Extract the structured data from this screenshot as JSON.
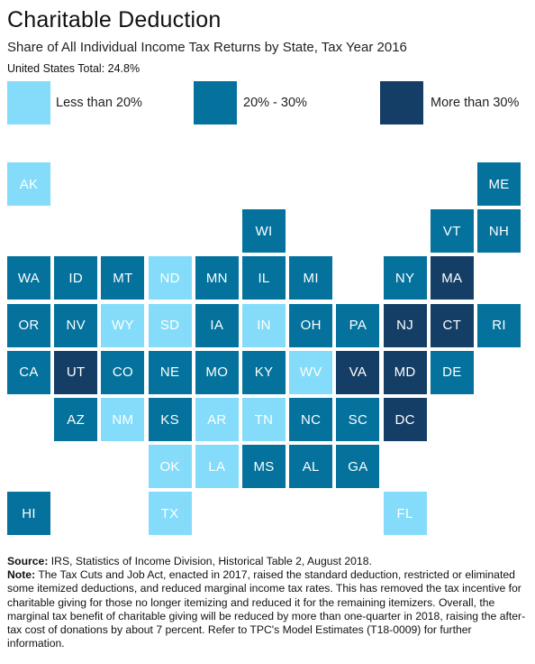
{
  "header": {
    "title": "Charitable Deduction",
    "subtitle": "Share of All Individual Income Tax Returns by State, Tax Year 2016",
    "total": "United States Total: 24.8%"
  },
  "colors": {
    "low": "#84dcfa",
    "mid": "#04729c",
    "high": "#153e66"
  },
  "legend": [
    {
      "label": "Less than 20%",
      "bucket": "low"
    },
    {
      "label": "20% - 30%",
      "bucket": "mid"
    },
    {
      "label": "More than 30%",
      "bucket": "high"
    }
  ],
  "states": [
    {
      "abbr": "AK",
      "bucket": "low",
      "col": 0,
      "row": 0
    },
    {
      "abbr": "ME",
      "bucket": "mid",
      "col": 10,
      "row": 0
    },
    {
      "abbr": "WI",
      "bucket": "mid",
      "col": 5,
      "row": 1
    },
    {
      "abbr": "VT",
      "bucket": "mid",
      "col": 9,
      "row": 1
    },
    {
      "abbr": "NH",
      "bucket": "mid",
      "col": 10,
      "row": 1
    },
    {
      "abbr": "WA",
      "bucket": "mid",
      "col": 0,
      "row": 2
    },
    {
      "abbr": "ID",
      "bucket": "mid",
      "col": 1,
      "row": 2
    },
    {
      "abbr": "MT",
      "bucket": "mid",
      "col": 2,
      "row": 2
    },
    {
      "abbr": "ND",
      "bucket": "low",
      "col": 3,
      "row": 2
    },
    {
      "abbr": "MN",
      "bucket": "mid",
      "col": 4,
      "row": 2
    },
    {
      "abbr": "IL",
      "bucket": "mid",
      "col": 5,
      "row": 2
    },
    {
      "abbr": "MI",
      "bucket": "mid",
      "col": 6,
      "row": 2
    },
    {
      "abbr": "NY",
      "bucket": "mid",
      "col": 8,
      "row": 2
    },
    {
      "abbr": "MA",
      "bucket": "high",
      "col": 9,
      "row": 2
    },
    {
      "abbr": "OR",
      "bucket": "mid",
      "col": 0,
      "row": 3
    },
    {
      "abbr": "NV",
      "bucket": "mid",
      "col": 1,
      "row": 3
    },
    {
      "abbr": "WY",
      "bucket": "low",
      "col": 2,
      "row": 3
    },
    {
      "abbr": "SD",
      "bucket": "low",
      "col": 3,
      "row": 3
    },
    {
      "abbr": "IA",
      "bucket": "mid",
      "col": 4,
      "row": 3
    },
    {
      "abbr": "IN",
      "bucket": "low",
      "col": 5,
      "row": 3
    },
    {
      "abbr": "OH",
      "bucket": "mid",
      "col": 6,
      "row": 3
    },
    {
      "abbr": "PA",
      "bucket": "mid",
      "col": 7,
      "row": 3
    },
    {
      "abbr": "NJ",
      "bucket": "high",
      "col": 8,
      "row": 3
    },
    {
      "abbr": "CT",
      "bucket": "high",
      "col": 9,
      "row": 3
    },
    {
      "abbr": "RI",
      "bucket": "mid",
      "col": 10,
      "row": 3
    },
    {
      "abbr": "CA",
      "bucket": "mid",
      "col": 0,
      "row": 4
    },
    {
      "abbr": "UT",
      "bucket": "high",
      "col": 1,
      "row": 4
    },
    {
      "abbr": "CO",
      "bucket": "mid",
      "col": 2,
      "row": 4
    },
    {
      "abbr": "NE",
      "bucket": "mid",
      "col": 3,
      "row": 4
    },
    {
      "abbr": "MO",
      "bucket": "mid",
      "col": 4,
      "row": 4
    },
    {
      "abbr": "KY",
      "bucket": "mid",
      "col": 5,
      "row": 4
    },
    {
      "abbr": "WV",
      "bucket": "low",
      "col": 6,
      "row": 4
    },
    {
      "abbr": "VA",
      "bucket": "high",
      "col": 7,
      "row": 4
    },
    {
      "abbr": "MD",
      "bucket": "high",
      "col": 8,
      "row": 4
    },
    {
      "abbr": "DE",
      "bucket": "mid",
      "col": 9,
      "row": 4
    },
    {
      "abbr": "AZ",
      "bucket": "mid",
      "col": 1,
      "row": 5
    },
    {
      "abbr": "NM",
      "bucket": "low",
      "col": 2,
      "row": 5
    },
    {
      "abbr": "KS",
      "bucket": "mid",
      "col": 3,
      "row": 5
    },
    {
      "abbr": "AR",
      "bucket": "low",
      "col": 4,
      "row": 5
    },
    {
      "abbr": "TN",
      "bucket": "low",
      "col": 5,
      "row": 5
    },
    {
      "abbr": "NC",
      "bucket": "mid",
      "col": 6,
      "row": 5
    },
    {
      "abbr": "SC",
      "bucket": "mid",
      "col": 7,
      "row": 5
    },
    {
      "abbr": "DC",
      "bucket": "high",
      "col": 8,
      "row": 5
    },
    {
      "abbr": "OK",
      "bucket": "low",
      "col": 3,
      "row": 6
    },
    {
      "abbr": "LA",
      "bucket": "low",
      "col": 4,
      "row": 6
    },
    {
      "abbr": "MS",
      "bucket": "mid",
      "col": 5,
      "row": 6
    },
    {
      "abbr": "AL",
      "bucket": "mid",
      "col": 6,
      "row": 6
    },
    {
      "abbr": "GA",
      "bucket": "mid",
      "col": 7,
      "row": 6
    },
    {
      "abbr": "HI",
      "bucket": "mid",
      "col": 0,
      "row": 7
    },
    {
      "abbr": "TX",
      "bucket": "low",
      "col": 3,
      "row": 7
    },
    {
      "abbr": "FL",
      "bucket": "low",
      "col": 8,
      "row": 7
    }
  ],
  "footer": {
    "source_label": "Source:",
    "source_text": " IRS, Statistics of Income Division, Historical Table 2, August 2018.",
    "note_label": "Note:",
    "note_text": " The Tax Cuts and Job Act, enacted in 2017, raised the standard deduction, restricted or eliminated some itemized deductions, and reduced marginal income tax rates. This has removed the tax incentive for charitable giving for those no longer itemizing and reduced it for the remaining itemizers. Overall, the marginal tax benefit of charitable giving will be reduced by more than one-quarter in 2018, raising the after-tax cost of donations by about 7 percent. Refer to TPC's Model Estimates (T18-0009) for further information."
  }
}
